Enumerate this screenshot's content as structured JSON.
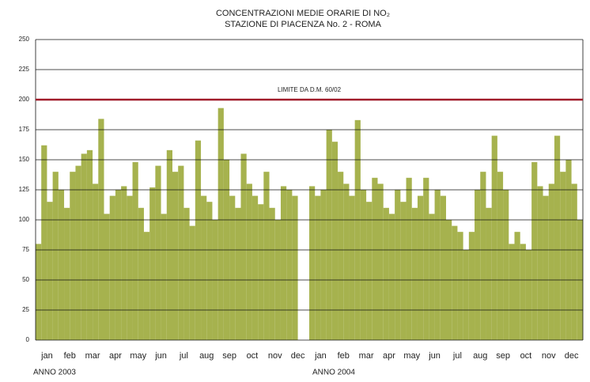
{
  "chart_data": {
    "type": "bar",
    "title": "CONCENTRAZIONI MEDIE ORARIE DI NO₂",
    "subtitle": "STAZIONE DI PIACENZA No. 2 - ROMA",
    "color": "#a6b24e",
    "x": [
      0,
      0.25,
      0.5,
      0.75,
      1,
      1.25,
      1.5,
      1.75,
      2,
      2.25,
      2.5,
      2.75,
      3,
      3.25,
      3.5,
      3.75,
      4,
      4.25,
      4.5,
      4.75,
      5,
      5.25,
      5.5,
      5.75,
      6,
      6.25,
      6.5,
      6.75,
      7,
      7.25,
      7.5,
      7.75,
      8,
      8.25,
      8.5,
      8.75,
      9,
      9.25,
      9.5,
      9.75,
      10,
      10.25,
      10.5,
      10.75,
      11,
      11.25,
      11.5,
      11.75,
      12,
      12.25,
      12.5,
      12.75,
      13,
      13.25,
      13.5,
      13.75,
      14,
      14.25,
      14.5,
      14.75,
      15,
      15.25,
      15.5,
      15.75,
      16,
      16.25,
      16.5,
      16.75,
      17,
      17.25,
      17.5,
      17.75,
      18,
      18.25,
      18.5,
      18.75,
      19,
      19.25,
      19.5,
      19.75,
      20,
      20.25,
      20.5,
      20.75,
      21,
      21.25,
      21.5,
      21.75,
      22,
      22.25,
      22.5,
      22.75,
      23,
      23.25,
      23.5,
      23.75
    ],
    "values": [
      80,
      162,
      115,
      140,
      125,
      110,
      140,
      145,
      155,
      158,
      130,
      184,
      105,
      120,
      125,
      128,
      120,
      148,
      110,
      90,
      127,
      145,
      105,
      158,
      140,
      145,
      110,
      95,
      166,
      120,
      115,
      100,
      193,
      150,
      120,
      110,
      155,
      130,
      120,
      113,
      140,
      110,
      100,
      128,
      125,
      120,
      null,
      null,
      128,
      120,
      125,
      175,
      165,
      140,
      130,
      120,
      183,
      125,
      115,
      135,
      130,
      110,
      105,
      125,
      115,
      135,
      110,
      120,
      135,
      105,
      125,
      120,
      100,
      95,
      90,
      75,
      90,
      125,
      140,
      110,
      170,
      140,
      125,
      80,
      90,
      80,
      75,
      148,
      128,
      120,
      130,
      170,
      140,
      150,
      130,
      100
    ],
    "xlim": [
      0,
      24
    ],
    "xticks": [
      {
        "value": 0.5,
        "label": "jan"
      },
      {
        "value": 1.5,
        "label": "feb"
      },
      {
        "value": 2.5,
        "label": "mar"
      },
      {
        "value": 3.5,
        "label": "apr"
      },
      {
        "value": 4.5,
        "label": "may"
      },
      {
        "value": 5.5,
        "label": "jun"
      },
      {
        "value": 6.5,
        "label": "jul"
      },
      {
        "value": 7.5,
        "label": "aug"
      },
      {
        "value": 8.5,
        "label": "sep"
      },
      {
        "value": 9.5,
        "label": "oct"
      },
      {
        "value": 10.5,
        "label": "nov"
      },
      {
        "value": 11.5,
        "label": "dec"
      },
      {
        "value": 12.5,
        "label": "jan"
      },
      {
        "value": 13.5,
        "label": "feb"
      },
      {
        "value": 14.5,
        "label": "mar"
      },
      {
        "value": 15.5,
        "label": "apr"
      },
      {
        "value": 16.5,
        "label": "may"
      },
      {
        "value": 17.5,
        "label": "jun"
      },
      {
        "value": 18.5,
        "label": "jul"
      },
      {
        "value": 19.5,
        "label": "aug"
      },
      {
        "value": 20.5,
        "label": "sep"
      },
      {
        "value": 21.5,
        "label": "oct"
      },
      {
        "value": 22.5,
        "label": "nov"
      },
      {
        "value": 23.5,
        "label": "dec"
      }
    ],
    "ylim": [
      0,
      250
    ],
    "yticks": [
      0,
      25,
      50,
      75,
      100,
      125,
      150,
      175,
      200,
      225,
      250
    ],
    "grid": true,
    "threshold": {
      "value": 200,
      "label": "LIMITE DA D.M. 60/02",
      "color": "#a01c2a"
    },
    "year_labels": [
      "ANNO 2003",
      "ANNO 2004"
    ]
  }
}
